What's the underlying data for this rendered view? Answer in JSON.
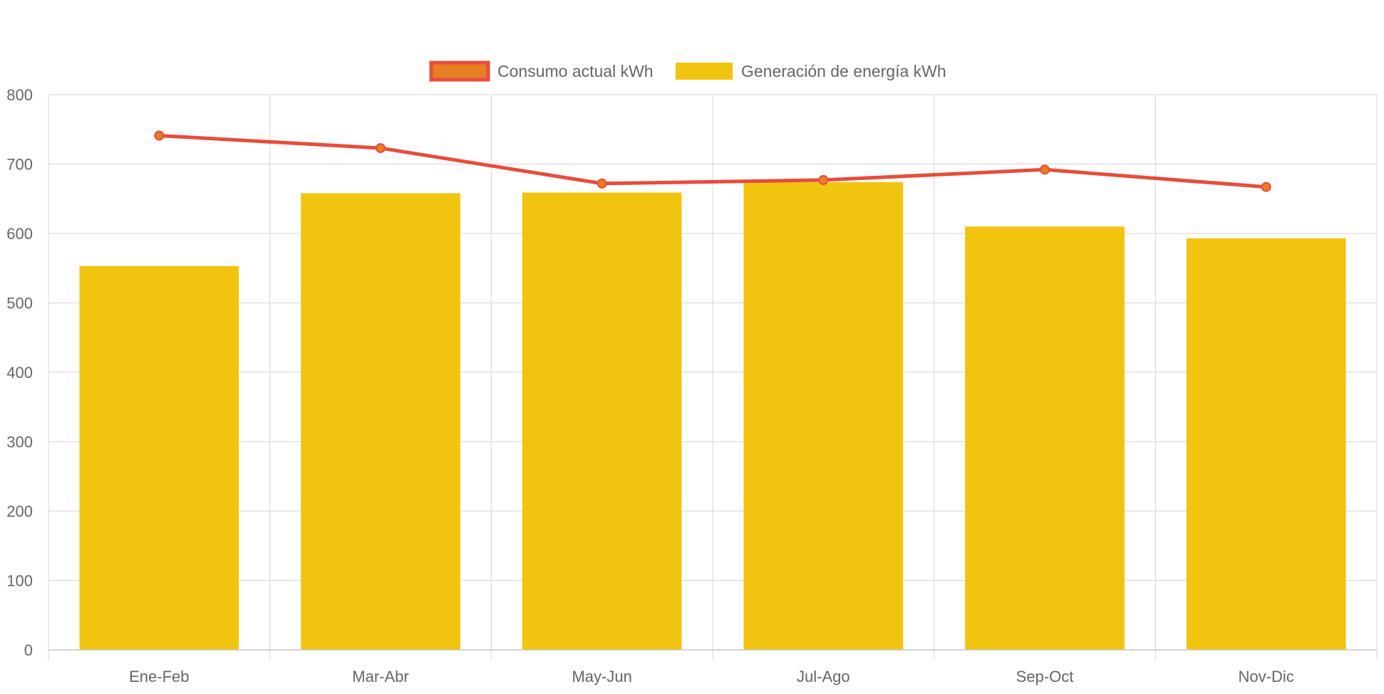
{
  "chart_data": {
    "type": "bar",
    "title": "",
    "xlabel": "",
    "ylabel": "",
    "categories": [
      "Ene-Feb",
      "Mar-Abr",
      "May-Jun",
      "Jul-Ago",
      "Sep-Oct",
      "Nov-Dic"
    ],
    "ylim": [
      0,
      800
    ],
    "yticks": [
      0,
      100,
      200,
      300,
      400,
      500,
      600,
      700,
      800
    ],
    "grid": true,
    "legend_position": "top-center",
    "series": [
      {
        "name": "Consumo actual kWh",
        "type": "line",
        "values": [
          741,
          723,
          672,
          677,
          692,
          667
        ],
        "color": "#e74c3c",
        "point_color": "#e67e22"
      },
      {
        "name": "Generación de energía kWh",
        "type": "bar",
        "values": [
          553,
          658,
          659,
          674,
          610,
          593
        ],
        "color": "#f1c40f"
      }
    ]
  }
}
